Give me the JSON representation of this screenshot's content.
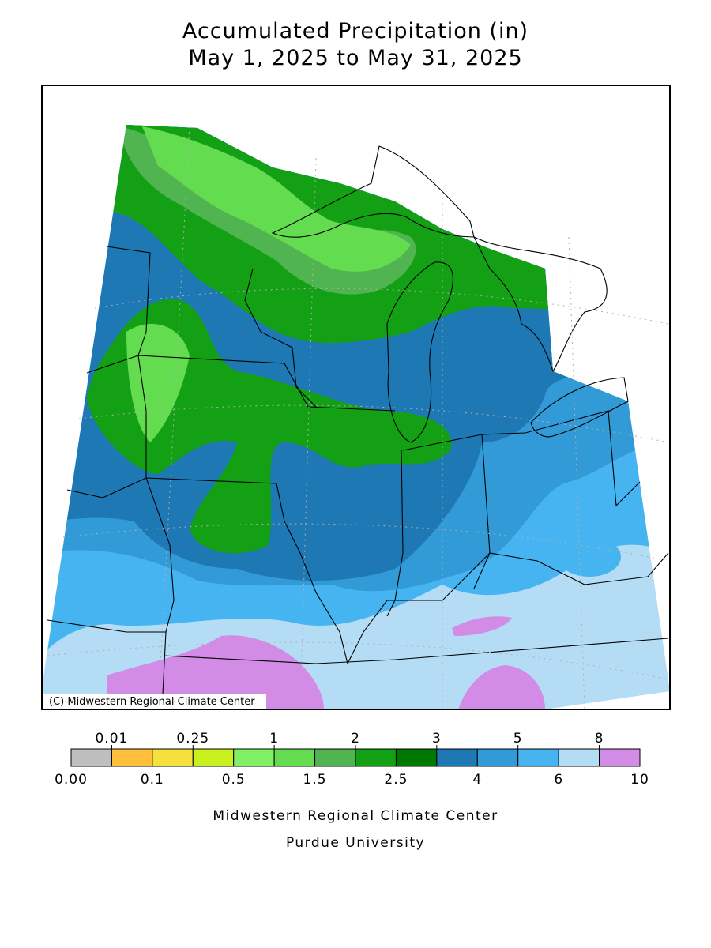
{
  "header": {
    "title": "Accumulated Precipitation (in)",
    "subtitle": "May 1, 2025 to May 31, 2025"
  },
  "map": {
    "credit": "(C) Midwestern Regional Climate Center"
  },
  "legend": {
    "colors": [
      "#bebebe",
      "#ffbe3c",
      "#f5e03c",
      "#c8f01e",
      "#82f064",
      "#64dc50",
      "#50b450",
      "#14a014",
      "#007800",
      "#1e78b4",
      "#329bd7",
      "#46b4f0",
      "#b4dcf5",
      "#d28ce6"
    ],
    "labels": [
      "0.00",
      "0.01",
      "0.1",
      "0.25",
      "0.5",
      "1",
      "1.5",
      "2",
      "2.5",
      "3",
      "4",
      "5",
      "6",
      "8",
      "10"
    ]
  },
  "footer": {
    "line1": "Midwestern Regional Climate Center",
    "line2": "Purdue University"
  }
}
